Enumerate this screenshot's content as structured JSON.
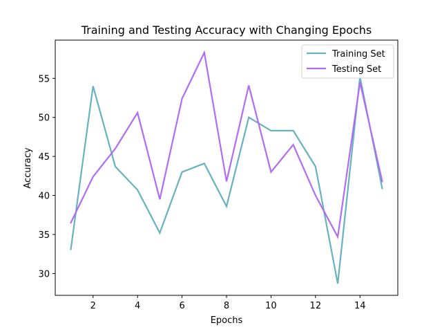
{
  "chart_data": {
    "type": "line",
    "title": "Training and Testing Accuracy with Changing Epochs",
    "xlabel": "Epochs",
    "ylabel": "Accuracy",
    "x": [
      1,
      2,
      3,
      4,
      5,
      6,
      7,
      8,
      9,
      10,
      11,
      12,
      13,
      14,
      15
    ],
    "xlim": [
      0.3,
      15.7
    ],
    "ylim": [
      27.2,
      59.9
    ],
    "xticks": [
      2,
      4,
      6,
      8,
      10,
      12,
      14
    ],
    "yticks": [
      30,
      35,
      40,
      45,
      50,
      55
    ],
    "grid": false,
    "legend": "top-right",
    "series": [
      {
        "name": "Training Set",
        "color": "#66b2bf",
        "values": [
          33.1,
          54.0,
          43.7,
          40.7,
          35.2,
          43.0,
          44.1,
          38.6,
          50.0,
          48.3,
          48.3,
          43.7,
          28.7,
          55.2,
          40.9
        ]
      },
      {
        "name": "Testing Set",
        "color": "#b06cf2",
        "values": [
          36.5,
          42.4,
          46.0,
          50.6,
          39.5,
          52.4,
          58.3,
          41.8,
          54.1,
          43.0,
          46.5,
          40.0,
          34.7,
          54.5,
          41.8
        ]
      }
    ]
  }
}
